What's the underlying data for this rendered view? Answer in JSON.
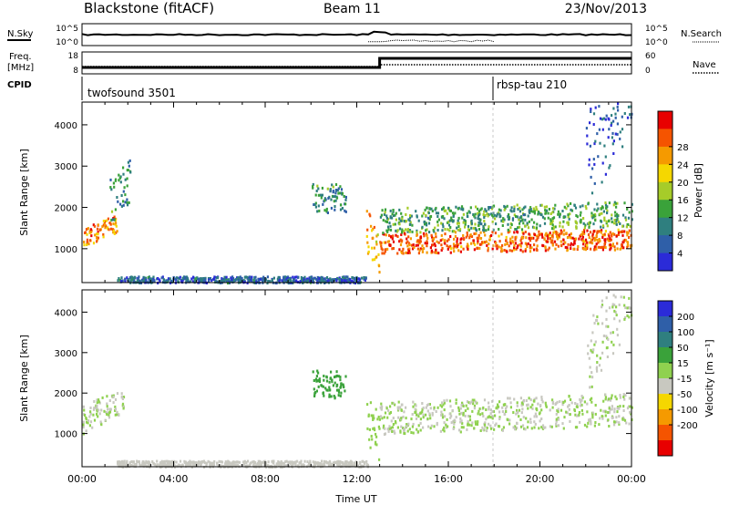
{
  "header": {
    "title": "Blackstone (fitACF)",
    "beam": "Beam 11",
    "date": "23/Nov/2013"
  },
  "summary_panels": {
    "nsky_label": "N.Sky",
    "nsearch_label": "N.Search",
    "noise_ticks": [
      "10^5",
      "10^0"
    ],
    "freq_label_line1": "Freq.",
    "freq_label_line2": "[MHz]",
    "freq_ticks": [
      "18",
      "8"
    ],
    "nave_label": "Nave",
    "nave_ticks": [
      "60",
      "0"
    ],
    "cpid_label": "CPID",
    "cpid_segments": [
      {
        "label": "twofsound 3501",
        "start_hour": 0
      },
      {
        "label": "rbsp-tau 210",
        "start_hour": 18
      }
    ]
  },
  "colors": {
    "power_scale": [
      "#2b2bd8",
      "#2f5fa8",
      "#2f7f7f",
      "#3aa23a",
      "#a6cc29",
      "#f5d700",
      "#f59a00",
      "#f55400",
      "#e80000"
    ],
    "velocity_scale": [
      "#2b2bd8",
      "#2f5fa8",
      "#2f7f7f",
      "#3aa23a",
      "#8fd14f",
      "#c8c8c0",
      "#f5d700",
      "#f59a00",
      "#f55400",
      "#e80000"
    ]
  },
  "chart_data": [
    {
      "type": "heatmap",
      "name": "power",
      "xlabel": "",
      "ylabel": "Slant Range [km]",
      "xlim_hours": [
        0,
        24
      ],
      "ylim_km": [
        180,
        4550
      ],
      "y_ticks": [
        "1000",
        "2000",
        "3000",
        "4000"
      ],
      "colorbar": {
        "label": "Power [dB]",
        "ticks": [
          "4",
          "8",
          "12",
          "16",
          "20",
          "24",
          "28"
        ],
        "range": [
          0,
          32
        ]
      },
      "features": [
        {
          "hour_start": 0.0,
          "hour_end": 1.5,
          "range_start_km": 1050,
          "range_end_km": 1500,
          "range_slope": 250,
          "value": 24
        },
        {
          "hour_start": 1.2,
          "hour_end": 2.1,
          "range_start_km": 1600,
          "range_end_km": 2700,
          "range_slope": 600,
          "value": 10
        },
        {
          "hour_start": 10.0,
          "hour_end": 11.5,
          "range_start_km": 1900,
          "range_end_km": 2600,
          "range_slope": 0,
          "value": 10
        },
        {
          "hour_start": 12.4,
          "hour_end": 13.0,
          "range_start_km": 900,
          "range_end_km": 2000,
          "range_slope": -900,
          "value": 22
        },
        {
          "hour_start": 13.0,
          "hour_end": 24.0,
          "range_start_km": 900,
          "range_end_km": 1400,
          "range_slope": 10,
          "value": 26
        },
        {
          "hour_start": 13.0,
          "hour_end": 24.0,
          "range_start_km": 1400,
          "range_end_km": 2000,
          "range_slope": 15,
          "value": 12
        },
        {
          "hour_start": 22.0,
          "hour_end": 24.0,
          "range_start_km": 2000,
          "range_end_km": 4300,
          "range_slope": 900,
          "value": 6
        },
        {
          "hour_start": 1.5,
          "hour_end": 12.5,
          "range_start_km": 200,
          "range_end_km": 350,
          "range_slope": 0,
          "value": 6
        }
      ]
    },
    {
      "type": "heatmap",
      "name": "velocity",
      "xlabel": "Time UT",
      "ylabel": "Slant Range [km]",
      "xlim_hours": [
        0,
        24
      ],
      "ylim_km": [
        180,
        4550
      ],
      "x_ticks": [
        "00:00",
        "04:00",
        "08:00",
        "12:00",
        "16:00",
        "20:00",
        "00:00"
      ],
      "y_ticks": [
        "1000",
        "2000",
        "3000",
        "4000"
      ],
      "colorbar": {
        "label": "Velocity [m s⁻¹]",
        "ticks": [
          "200",
          "100",
          "50",
          "15",
          "-15",
          "-50",
          "-100",
          "-200"
        ],
        "range": [
          -250,
          250
        ]
      },
      "features": [
        {
          "hour_start": 0.0,
          "hour_end": 1.8,
          "range_start_km": 1000,
          "range_end_km": 1700,
          "range_slope": 300,
          "value": 0
        },
        {
          "hour_start": 10.0,
          "hour_end": 11.5,
          "range_start_km": 1900,
          "range_end_km": 2600,
          "range_slope": 0,
          "value": 80
        },
        {
          "hour_start": 12.4,
          "hour_end": 13.0,
          "range_start_km": 800,
          "range_end_km": 2000,
          "range_slope": -900,
          "value": 40
        },
        {
          "hour_start": 13.0,
          "hour_end": 24.0,
          "range_start_km": 1000,
          "range_end_km": 1800,
          "range_slope": 20,
          "value": 0
        },
        {
          "hour_start": 22.0,
          "hour_end": 24.0,
          "range_start_km": 2000,
          "range_end_km": 3800,
          "range_slope": 800,
          "value": 0
        },
        {
          "hour_start": 1.5,
          "hour_end": 12.5,
          "range_start_km": 200,
          "range_end_km": 350,
          "range_slope": 0,
          "value": -40
        }
      ]
    }
  ]
}
